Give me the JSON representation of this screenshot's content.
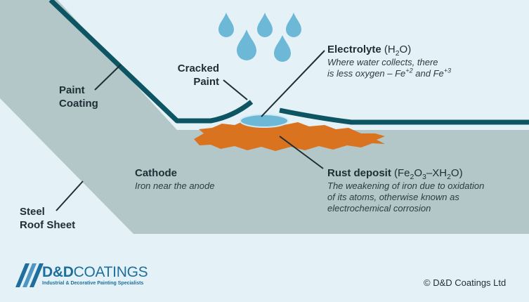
{
  "labels": {
    "paint_coating": [
      "Paint",
      "Coating"
    ],
    "cracked_paint": [
      "Cracked",
      "Paint"
    ],
    "electrolyte": {
      "title": "Electrolyte",
      "formula": [
        "(H",
        "2",
        "O)"
      ],
      "desc_line1": "Where water collects, there",
      "desc_line2": [
        "is less oxygen – Fe",
        "+2",
        " and Fe",
        "+3"
      ]
    },
    "cathode": {
      "title": "Cathode",
      "desc": "Iron near the anode"
    },
    "rust": {
      "title": "Rust deposit",
      "formula": [
        "(Fe",
        "2",
        "O",
        "3",
        "–XH",
        "2",
        "O)"
      ],
      "desc": [
        "The weakening of iron due to oxidation",
        "of its atoms, otherwise known as",
        "electrochemical corrosion"
      ]
    },
    "steel": [
      "Steel",
      "Roof Sheet"
    ]
  },
  "brand": {
    "name_bold": "D&D",
    "name_light": "COATINGS",
    "tagline": "Industrial & Decorative Painting Specialists",
    "copyright": "© D&D Coatings Ltd"
  },
  "colors": {
    "sheet": "#b3c7c9",
    "coating": "#0d5562",
    "water": "#6db8d6",
    "rust": "#d9731f",
    "brand": "#1e6f9e"
  }
}
